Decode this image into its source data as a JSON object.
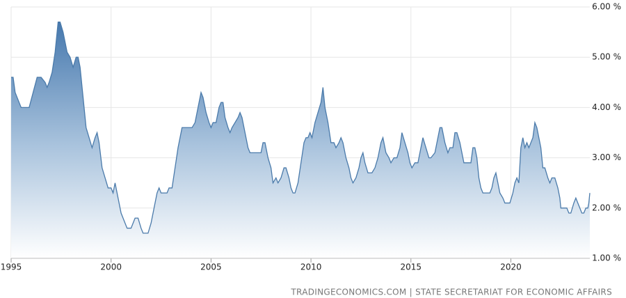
{
  "chart_data": {
    "type": "area",
    "source": "TRADINGECONOMICS.COM | STATE SECRETARIAT FOR ECONOMIC AFFAIRS",
    "color": "#4a7aaa",
    "x": [
      1995.0,
      1995.1,
      1995.2,
      1995.4,
      1995.5,
      1995.9,
      1996.1,
      1996.3,
      1996.5,
      1996.7,
      1996.8,
      1996.9,
      1997.05,
      1997.2,
      1997.35,
      1997.45,
      1997.6,
      1997.8,
      1997.95,
      1998.1,
      1998.25,
      1998.35,
      1998.45,
      1998.6,
      1998.75,
      1998.9,
      1999.05,
      1999.2,
      1999.3,
      1999.4,
      1999.55,
      1999.7,
      1999.85,
      2000.0,
      2000.1,
      2000.2,
      2000.35,
      2000.5,
      2000.6,
      2000.7,
      2000.8,
      2001.0,
      2001.1,
      2001.2,
      2001.35,
      2001.5,
      2001.6,
      2001.85,
      2002.0,
      2002.15,
      2002.3,
      2002.4,
      2002.5,
      2002.8,
      2002.9,
      2003.05,
      2003.2,
      2003.35,
      2003.55,
      2004.05,
      2004.2,
      2004.35,
      2004.5,
      2004.6,
      2004.75,
      2004.9,
      2005.0,
      2005.1,
      2005.25,
      2005.4,
      2005.5,
      2005.6,
      2005.7,
      2005.85,
      2005.95,
      2006.05,
      2006.2,
      2006.35,
      2006.45,
      2006.55,
      2006.7,
      2006.85,
      2006.95,
      2007.5,
      2007.6,
      2007.7,
      2007.85,
      2008.0,
      2008.1,
      2008.25,
      2008.35,
      2008.5,
      2008.65,
      2008.75,
      2008.9,
      2009.0,
      2009.1,
      2009.2,
      2009.35,
      2009.5,
      2009.65,
      2009.75,
      2009.85,
      2009.95,
      2010.05,
      2010.2,
      2010.35,
      2010.5,
      2010.6,
      2010.7,
      2010.85,
      2011.0,
      2011.15,
      2011.25,
      2011.4,
      2011.5,
      2011.6,
      2011.75,
      2011.9,
      2012.0,
      2012.1,
      2012.25,
      2012.4,
      2012.5,
      2012.6,
      2012.7,
      2012.85,
      2013.05,
      2013.2,
      2013.35,
      2013.5,
      2013.6,
      2013.75,
      2013.9,
      2014.0,
      2014.15,
      2014.3,
      2014.45,
      2014.55,
      2014.7,
      2014.85,
      2014.95,
      2015.05,
      2015.2,
      2015.35,
      2015.5,
      2015.6,
      2015.75,
      2015.9,
      2016.0,
      2016.2,
      2016.35,
      2016.45,
      2016.55,
      2016.7,
      2016.85,
      2016.95,
      2017.1,
      2017.2,
      2017.3,
      2017.45,
      2017.55,
      2017.65,
      2018.0,
      2018.1,
      2018.2,
      2018.3,
      2018.4,
      2018.5,
      2018.6,
      2018.95,
      2019.05,
      2019.15,
      2019.25,
      2019.35,
      2019.45,
      2019.6,
      2019.7,
      2019.95,
      2020.1,
      2020.2,
      2020.3,
      2020.4,
      2020.5,
      2020.6,
      2020.7,
      2020.8,
      2020.9,
      2021.0,
      2021.1,
      2021.2,
      2021.3,
      2021.4,
      2021.5,
      2021.6,
      2021.7,
      2021.85,
      2021.95,
      2022.05,
      2022.2,
      2022.35,
      2022.45,
      2022.5,
      2022.8,
      2022.9,
      2023.0,
      2023.15,
      2023.25,
      2023.35,
      2023.45,
      2023.55,
      2023.65,
      2023.75,
      2023.85,
      2023.9,
      2023.95
    ],
    "values": [
      4.6,
      4.6,
      4.3,
      4.1,
      4.0,
      4.0,
      4.3,
      4.6,
      4.6,
      4.5,
      4.4,
      4.5,
      4.7,
      5.1,
      5.7,
      5.7,
      5.5,
      5.1,
      5.0,
      4.8,
      5.0,
      5.0,
      4.8,
      4.2,
      3.6,
      3.4,
      3.2,
      3.4,
      3.5,
      3.3,
      2.8,
      2.6,
      2.4,
      2.4,
      2.3,
      2.5,
      2.2,
      1.9,
      1.8,
      1.7,
      1.6,
      1.6,
      1.7,
      1.8,
      1.8,
      1.6,
      1.5,
      1.5,
      1.7,
      2.0,
      2.3,
      2.4,
      2.3,
      2.3,
      2.4,
      2.4,
      2.8,
      3.2,
      3.6,
      3.6,
      3.7,
      4.0,
      4.3,
      4.2,
      3.9,
      3.7,
      3.6,
      3.7,
      3.7,
      4.0,
      4.1,
      4.1,
      3.8,
      3.6,
      3.5,
      3.6,
      3.7,
      3.8,
      3.9,
      3.8,
      3.5,
      3.2,
      3.1,
      3.1,
      3.3,
      3.3,
      3.0,
      2.8,
      2.5,
      2.6,
      2.5,
      2.6,
      2.8,
      2.8,
      2.6,
      2.4,
      2.3,
      2.3,
      2.5,
      2.9,
      3.3,
      3.4,
      3.4,
      3.5,
      3.4,
      3.7,
      3.9,
      4.1,
      4.4,
      4.0,
      3.7,
      3.3,
      3.3,
      3.2,
      3.3,
      3.4,
      3.3,
      3.0,
      2.8,
      2.6,
      2.5,
      2.6,
      2.8,
      3.0,
      3.1,
      2.9,
      2.7,
      2.7,
      2.8,
      3.0,
      3.3,
      3.4,
      3.1,
      3.0,
      2.9,
      3.0,
      3.0,
      3.2,
      3.5,
      3.3,
      3.1,
      2.9,
      2.8,
      2.9,
      2.9,
      3.2,
      3.4,
      3.2,
      3.0,
      3.0,
      3.1,
      3.4,
      3.6,
      3.6,
      3.3,
      3.1,
      3.2,
      3.2,
      3.5,
      3.5,
      3.3,
      3.1,
      2.9,
      2.9,
      3.2,
      3.2,
      3.0,
      2.6,
      2.4,
      2.3,
      2.3,
      2.4,
      2.6,
      2.7,
      2.5,
      2.3,
      2.2,
      2.1,
      2.1,
      2.3,
      2.5,
      2.6,
      2.5,
      3.2,
      3.4,
      3.2,
      3.3,
      3.2,
      3.3,
      3.4,
      3.7,
      3.6,
      3.4,
      3.2,
      2.8,
      2.8,
      2.6,
      2.5,
      2.6,
      2.6,
      2.4,
      2.2,
      2.0,
      2.0,
      1.9,
      1.9,
      2.1,
      2.2,
      2.1,
      2.0,
      1.9,
      1.9,
      2.0,
      2.0,
      2.1,
      2.3
    ],
    "xlim": [
      1995,
      2023.95
    ],
    "xticks": [
      1995,
      2000,
      2005,
      2010,
      2015,
      2020
    ],
    "ylim": [
      1,
      6
    ],
    "yticks": [
      {
        "value": 1,
        "label": "1.00 %"
      },
      {
        "value": 2,
        "label": "2.00 %"
      },
      {
        "value": 3,
        "label": "3.00 %"
      },
      {
        "value": 4,
        "label": "4.00 %"
      },
      {
        "value": 5,
        "label": "5.00 %"
      },
      {
        "value": 6,
        "label": "6.00 %"
      }
    ],
    "grid": true
  }
}
